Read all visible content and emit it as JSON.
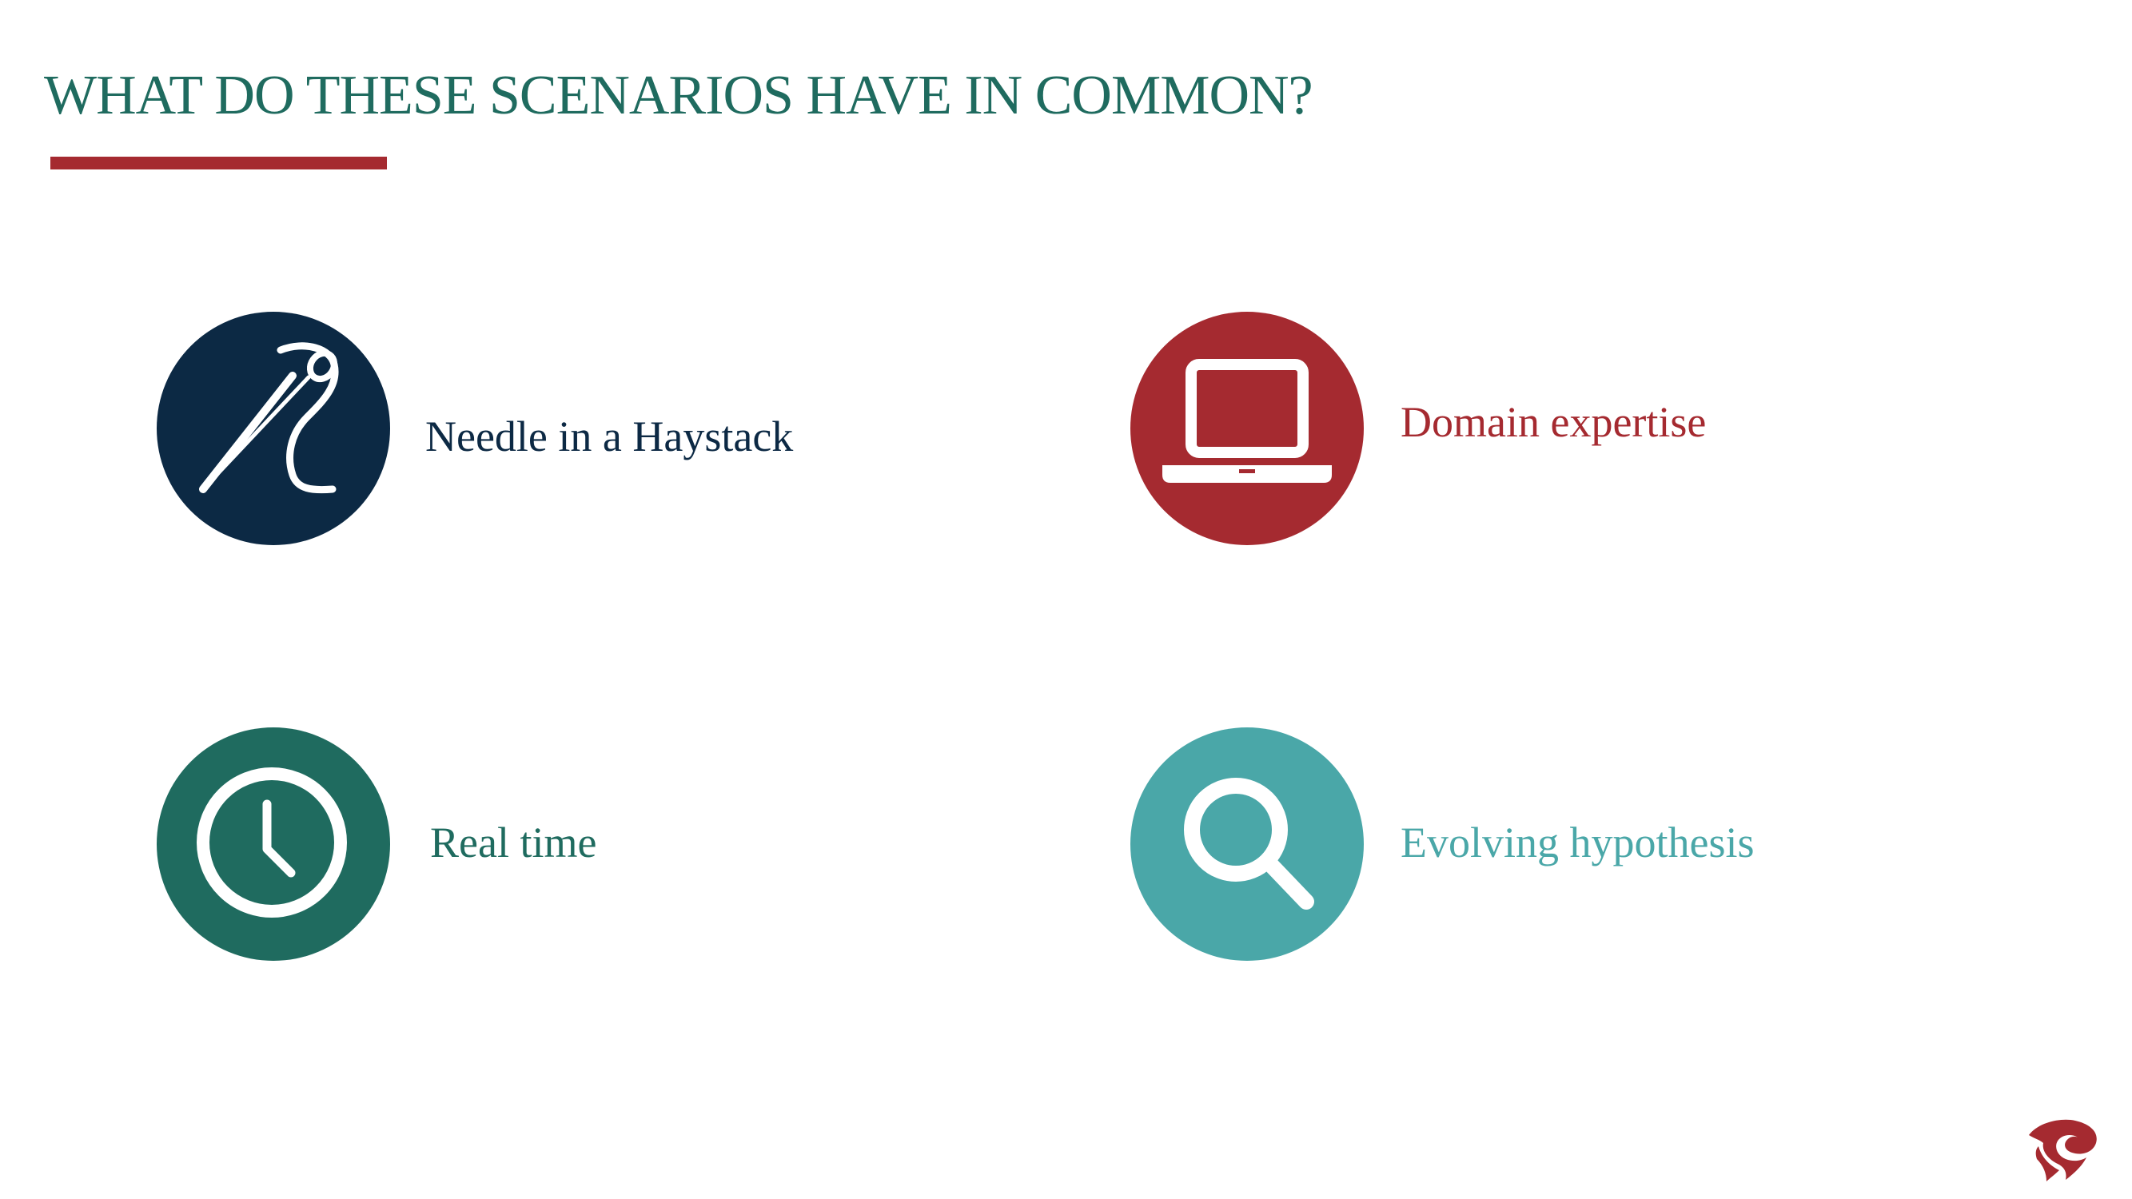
{
  "slide": {
    "title": "WHAT DO THESE SCENARIOS HAVE IN COMMON?",
    "accent_color": "#a52a30",
    "title_color": "#1f6b5f"
  },
  "items": [
    {
      "label": "Needle in a Haystack",
      "icon": "needle-icon",
      "circle_color": "#0c2944",
      "text_color": "#0c2944"
    },
    {
      "label": "Domain expertise",
      "icon": "laptop-icon",
      "circle_color": "#a52a30",
      "text_color": "#a52a30"
    },
    {
      "label": "Real time",
      "icon": "clock-icon",
      "circle_color": "#1f6b5f",
      "text_color": "#1f6b5f"
    },
    {
      "label": "Evolving hypothesis",
      "icon": "magnifier-icon",
      "circle_color": "#4aa7a8",
      "text_color": "#4aa7a8"
    }
  ],
  "logo": {
    "icon": "company-logo-icon",
    "color": "#a52a30"
  }
}
